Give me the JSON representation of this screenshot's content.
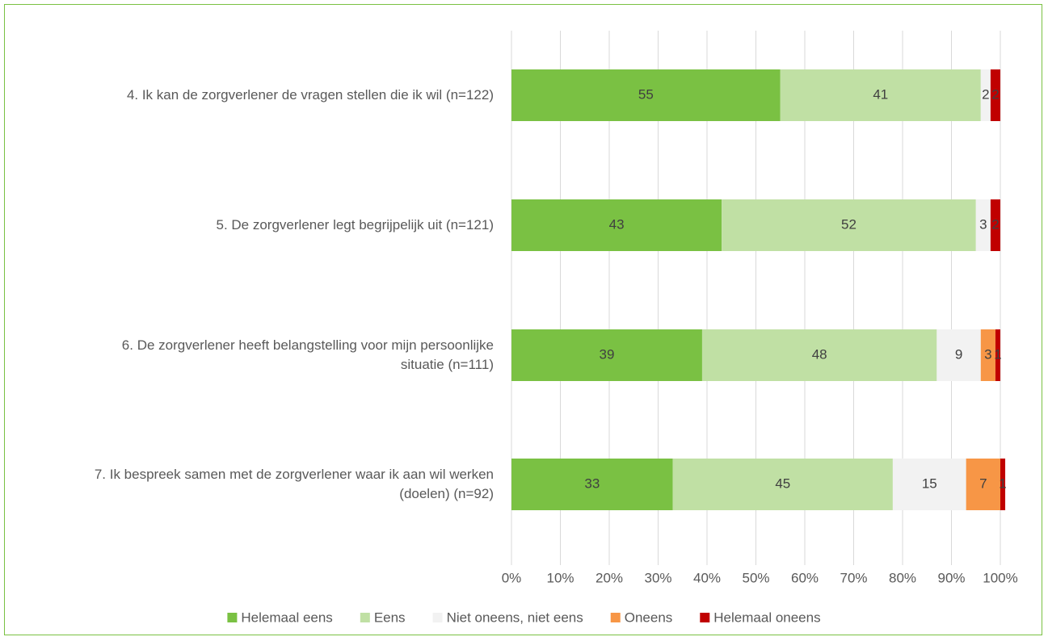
{
  "chart_data": {
    "type": "stacked-bar-horizontal",
    "categories": [
      "4. Ik kan de zorgverlener de vragen stellen die ik wil (n=122)",
      "5. De zorgverlener legt begrijpelijk uit (n=121)",
      "6. De zorgverlener heeft belangstelling voor mijn persoonlijke situatie (n=111)",
      "7. Ik bespreek samen met de zorgverlener waar ik aan wil werken (doelen) (n=92)"
    ],
    "series": [
      {
        "name": "Helemaal eens",
        "color": "#7ac143",
        "values": [
          55,
          43,
          39,
          33
        ]
      },
      {
        "name": "Eens",
        "color": "#c0e0a4",
        "values": [
          41,
          52,
          48,
          45
        ]
      },
      {
        "name": "Niet oneens, niet eens",
        "color": "#f2f2f2",
        "values": [
          2,
          3,
          9,
          15
        ]
      },
      {
        "name": "Oneens",
        "color": "#f79646",
        "values": [
          0,
          0,
          3,
          7
        ]
      },
      {
        "name": "Helemaal oneens",
        "color": "#c00000",
        "values": [
          2,
          2,
          1,
          1
        ]
      }
    ],
    "xlim": [
      0,
      100
    ],
    "xticks": [
      {
        "value": 0,
        "label": "0%"
      },
      {
        "value": 10,
        "label": "10%"
      },
      {
        "value": 20,
        "label": "20%"
      },
      {
        "value": 30,
        "label": "30%"
      },
      {
        "value": 40,
        "label": "40%"
      },
      {
        "value": 50,
        "label": "50%"
      },
      {
        "value": 60,
        "label": "60%"
      },
      {
        "value": 70,
        "label": "70%"
      },
      {
        "value": 80,
        "label": "80%"
      },
      {
        "value": 90,
        "label": "90%"
      },
      {
        "value": 100,
        "label": "100%"
      }
    ],
    "grid": true,
    "legend": "bottom"
  }
}
